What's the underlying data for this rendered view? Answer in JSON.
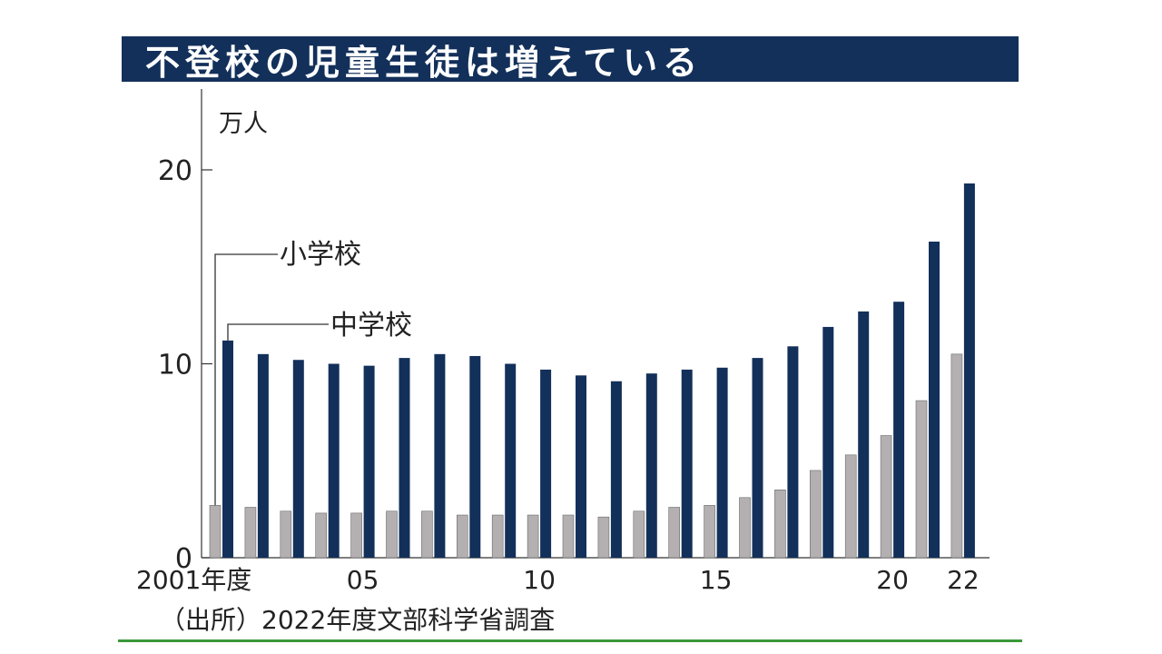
{
  "title": "不登校の児童生徒は増えている",
  "colors": {
    "banner": "#13305a",
    "elementary": "#b4b0b2",
    "junior_high": "#13305a",
    "footer_line": "#3a9a3a"
  },
  "chart_data": {
    "type": "bar",
    "title": "不登校の児童生徒は増えている",
    "ylabel": "万人",
    "ylim": [
      0,
      24
    ],
    "yticks": [
      0,
      10,
      20
    ],
    "grid": false,
    "categories": [
      "2001",
      "2002",
      "2003",
      "2004",
      "2005",
      "2006",
      "2007",
      "2008",
      "2009",
      "2010",
      "2011",
      "2012",
      "2013",
      "2014",
      "2015",
      "2016",
      "2017",
      "2018",
      "2019",
      "2020",
      "2021",
      "2022"
    ],
    "x_tick_labels": [
      {
        "index": 0,
        "label": "2001年度"
      },
      {
        "index": 4,
        "label": "05"
      },
      {
        "index": 9,
        "label": "10"
      },
      {
        "index": 14,
        "label": "15"
      },
      {
        "index": 19,
        "label": "20"
      },
      {
        "index": 21,
        "label": "22"
      }
    ],
    "series": [
      {
        "name": "小学校",
        "color": "#b4b0b2",
        "values": [
          2.7,
          2.6,
          2.4,
          2.3,
          2.3,
          2.4,
          2.4,
          2.2,
          2.2,
          2.2,
          2.2,
          2.1,
          2.4,
          2.6,
          2.7,
          3.1,
          3.5,
          4.5,
          5.3,
          6.3,
          8.1,
          10.5
        ]
      },
      {
        "name": "中学校",
        "color": "#13305a",
        "values": [
          11.2,
          10.5,
          10.2,
          10.0,
          9.9,
          10.3,
          10.5,
          10.4,
          10.0,
          9.7,
          9.4,
          9.1,
          9.5,
          9.7,
          9.8,
          10.3,
          10.9,
          11.9,
          12.7,
          13.2,
          16.3,
          19.3
        ]
      }
    ],
    "legend": "callouts-top-left"
  },
  "source": "（出所）2022年度文部科学省調査"
}
